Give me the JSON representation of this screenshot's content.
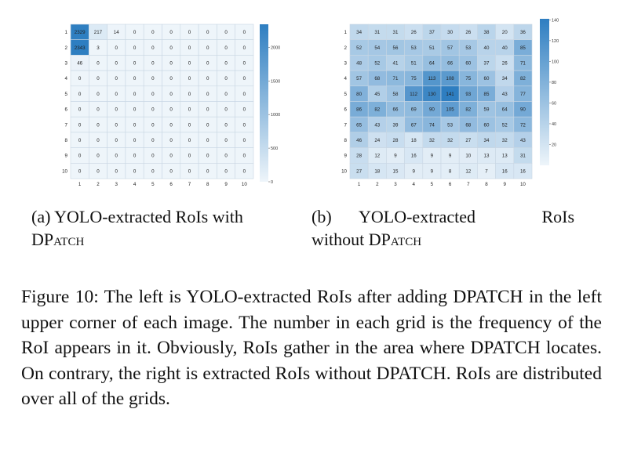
{
  "figure": {
    "number_text": "Figure 10:",
    "caption": "The left is YOLO-extracted RoIs after adding DPATCH in the left upper corner of each image. The number in each grid is the frequency of the RoI appears in it. Obviously, RoIs gather in the area where DPATCH locates. On contrary, the right is extracted RoIs without DPATCH. RoIs are distributed over all of the grids."
  },
  "subcaptions": [
    {
      "label": "(a)",
      "text_line1": "YOLO-extracted RoIs with",
      "text_line2_plain": "D",
      "text_line2_sc": "Patch"
    },
    {
      "label": "(b)",
      "text_line1": "YOLO-extracted RoIs",
      "text_line2_plain": "without D",
      "text_line2_sc": "Patch"
    }
  ],
  "chart_data": [
    {
      "type": "heatmap",
      "row_labels": [
        "1",
        "2",
        "3",
        "4",
        "5",
        "6",
        "7",
        "8",
        "9",
        "10"
      ],
      "col_labels": [
        "1",
        "2",
        "3",
        "4",
        "5",
        "6",
        "7",
        "8",
        "9",
        "10"
      ],
      "values": [
        [
          2329,
          217,
          14,
          0,
          0,
          0,
          0,
          0,
          0,
          0
        ],
        [
          2343,
          3,
          0,
          0,
          0,
          0,
          0,
          0,
          0,
          0
        ],
        [
          46,
          0,
          0,
          0,
          0,
          0,
          0,
          0,
          0,
          0
        ],
        [
          0,
          0,
          0,
          0,
          0,
          0,
          0,
          0,
          0,
          0
        ],
        [
          0,
          0,
          0,
          0,
          0,
          0,
          0,
          0,
          0,
          0
        ],
        [
          0,
          0,
          0,
          0,
          0,
          0,
          0,
          0,
          0,
          0
        ],
        [
          0,
          0,
          0,
          0,
          0,
          0,
          0,
          0,
          0,
          0
        ],
        [
          0,
          0,
          0,
          0,
          0,
          0,
          0,
          0,
          0,
          0
        ],
        [
          0,
          0,
          0,
          0,
          0,
          0,
          0,
          0,
          0,
          0
        ],
        [
          0,
          0,
          0,
          0,
          0,
          0,
          0,
          0,
          0,
          0
        ]
      ],
      "colorbar": {
        "min": 0,
        "max": 2343,
        "ticks": [
          2000,
          1500,
          1000,
          500,
          0
        ]
      },
      "colors": {
        "low": "#ffffff",
        "high": "#2e7ec1",
        "border": "#c9d6e3"
      }
    },
    {
      "type": "heatmap",
      "row_labels": [
        "1",
        "2",
        "3",
        "4",
        "5",
        "6",
        "7",
        "8",
        "9",
        "10"
      ],
      "col_labels": [
        "1",
        "2",
        "3",
        "4",
        "5",
        "6",
        "7",
        "8",
        "9",
        "10"
      ],
      "values": [
        [
          34,
          31,
          31,
          26,
          37,
          30,
          26,
          38,
          20,
          36
        ],
        [
          52,
          54,
          56,
          53,
          51,
          57,
          53,
          40,
          40,
          85
        ],
        [
          48,
          52,
          41,
          51,
          64,
          66,
          60,
          37,
          26,
          71
        ],
        [
          57,
          68,
          71,
          75,
          113,
          108,
          75,
          60,
          34,
          82
        ],
        [
          80,
          45,
          58,
          112,
          130,
          141,
          93,
          85,
          43,
          77
        ],
        [
          86,
          82,
          66,
          69,
          90,
          105,
          82,
          59,
          64,
          90
        ],
        [
          65,
          43,
          39,
          67,
          74,
          53,
          68,
          60,
          52,
          72
        ],
        [
          46,
          24,
          28,
          18,
          32,
          32,
          27,
          34,
          32,
          43
        ],
        [
          28,
          12,
          9,
          16,
          9,
          9,
          10,
          13,
          13,
          31
        ],
        [
          27,
          18,
          15,
          9,
          9,
          8,
          12,
          7,
          16,
          16
        ]
      ],
      "colorbar": {
        "min": 0,
        "max": 141,
        "ticks": [
          140,
          120,
          100,
          80,
          60,
          40,
          20
        ]
      },
      "colors": {
        "low": "#ffffff",
        "high": "#2e7ec1",
        "border": "#c9d6e3"
      }
    }
  ]
}
